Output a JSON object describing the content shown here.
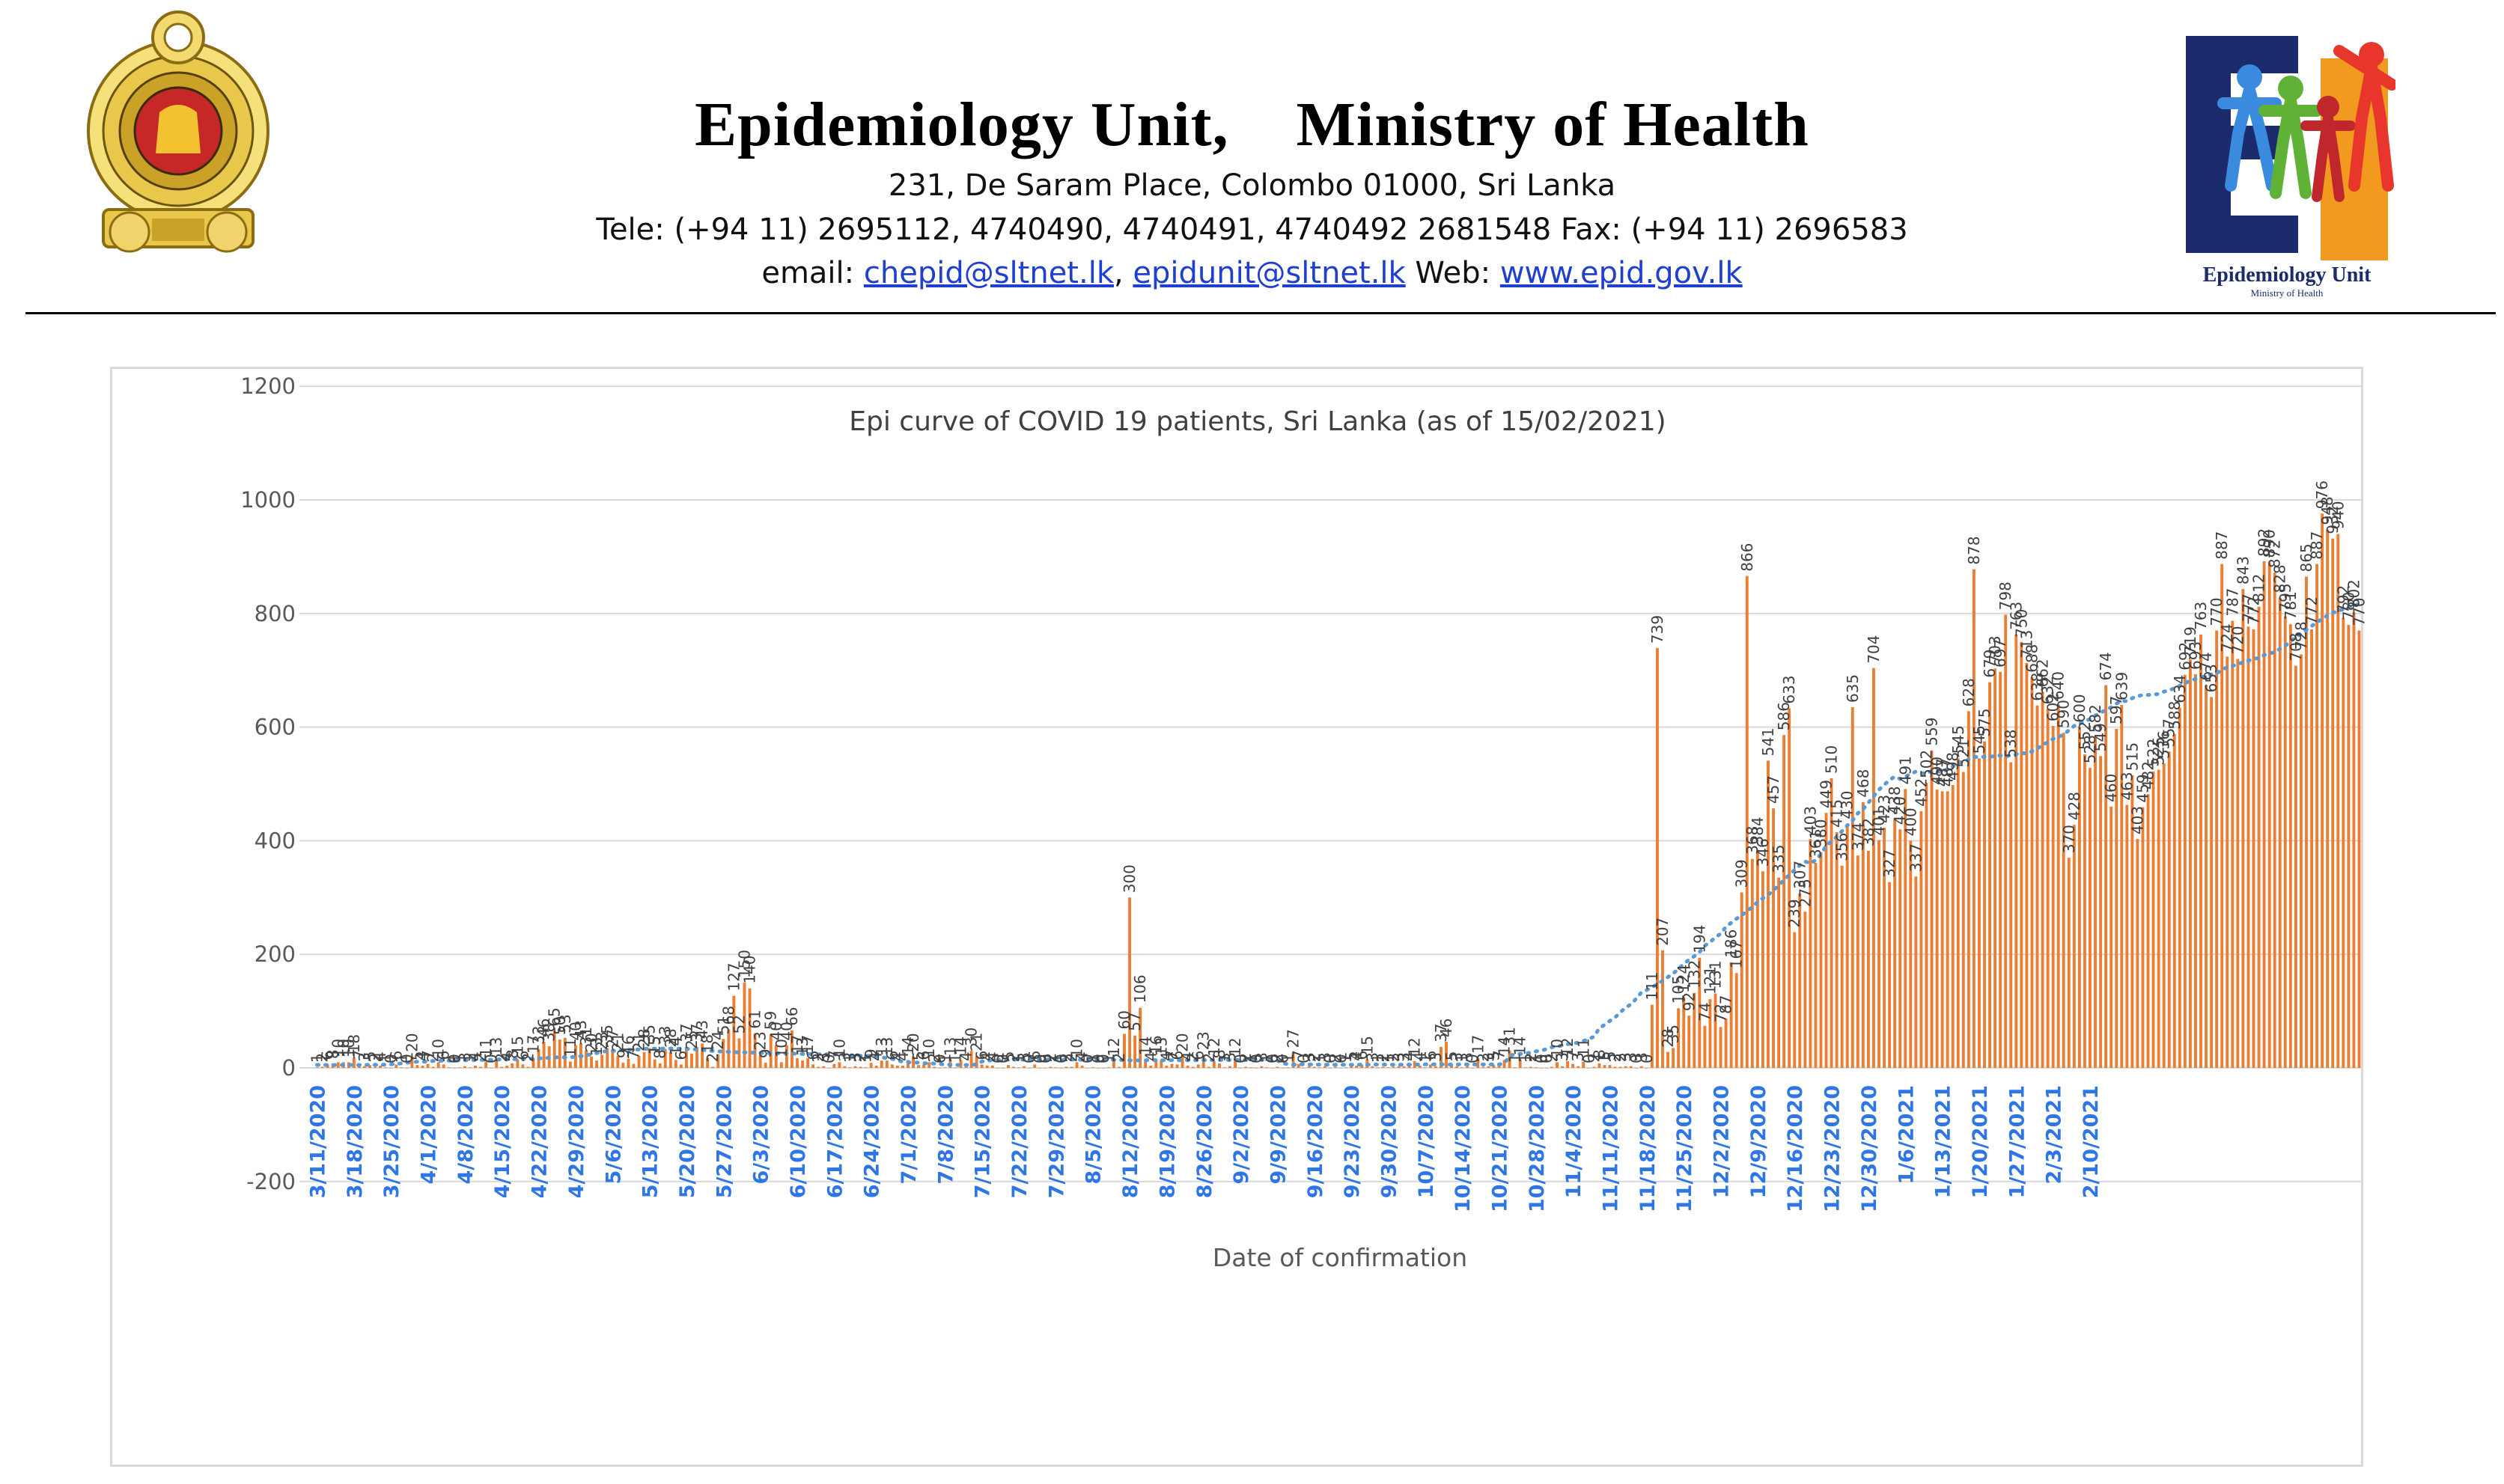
{
  "header": {
    "title_left": "Epidemiology Unit,",
    "title_right": "Ministry of Health",
    "address": "231, De Saram Place, Colombo 01000, Sri Lanka",
    "tele": "Tele: (+94 11) 2695112, 4740490, 4740491, 4740492 2681548  Fax: (+94 11) 2696583",
    "email_label": "email: ",
    "email1": "chepid@sltnet.lk",
    "email_sep": ", ",
    "email2": "epidunit@sltnet.lk",
    "web_label": " Web: ",
    "web": "www.epid.gov.lk",
    "logo_text": "Epidemiology Unit",
    "logo_subtext": "Ministry of Health"
  },
  "colors": {
    "bar": "#ed7d31",
    "trend": "#5b9bd5",
    "xlabel": "#2e75e6",
    "axis_text": "#595959",
    "link": "#1f3fd0"
  },
  "chart_data": {
    "type": "bar",
    "title": "Epi curve of COVID 19 patients, Sri Lanka  (as of 15/02/2021)",
    "xlabel": "Date of confirmation",
    "ylabel": "",
    "ylim": [
      -200,
      1200
    ],
    "yticks": [
      -200,
      0,
      200,
      400,
      600,
      800,
      1000,
      1200
    ],
    "start_date": "3/11/2020",
    "end_date": "2/15/2021",
    "x_tick_labels": [
      "3/11/2020",
      "3/18/2020",
      "3/25/2020",
      "4/1/2020",
      "4/8/2020",
      "4/15/2020",
      "4/22/2020",
      "4/29/2020",
      "5/6/2020",
      "5/13/2020",
      "5/20/2020",
      "5/27/2020",
      "6/3/2020",
      "6/10/2020",
      "6/17/2020",
      "6/24/2020",
      "7/1/2020",
      "7/8/2020",
      "7/15/2020",
      "7/22/2020",
      "7/29/2020",
      "8/5/2020",
      "8/12/2020",
      "8/19/2020",
      "8/26/2020",
      "9/2/2020",
      "9/9/2020",
      "9/16/2020",
      "9/23/2020",
      "9/30/2020",
      "10/7/2020",
      "10/14/2020",
      "10/21/2020",
      "10/28/2020",
      "11/4/2020",
      "11/11/2020",
      "11/18/2020",
      "11/25/2020",
      "12/2/2020",
      "12/9/2020",
      "12/16/2020",
      "12/23/2020",
      "12/30/2020",
      "1/6/2021",
      "1/13/2021",
      "1/20/2021",
      "1/27/2021",
      "2/3/2021",
      "2/10/2021"
    ],
    "values": [
      1,
      2,
      6,
      8,
      10,
      10,
      10,
      18,
      7,
      3,
      5,
      2,
      4,
      1,
      0,
      6,
      1,
      0,
      20,
      5,
      4,
      7,
      2,
      10,
      6,
      1,
      0,
      1,
      3,
      1,
      4,
      2,
      11,
      0,
      13,
      2,
      4,
      8,
      15,
      6,
      2,
      17,
      33,
      46,
      38,
      65,
      50,
      53,
      11,
      40,
      43,
      31,
      20,
      13,
      23,
      35,
      27,
      21,
      9,
      16,
      7,
      21,
      28,
      35,
      15,
      8,
      33,
      28,
      14,
      6,
      37,
      25,
      37,
      43,
      18,
      2,
      24,
      51,
      68,
      127,
      52,
      150,
      140,
      61,
      23,
      9,
      59,
      40,
      10,
      40,
      66,
      17,
      13,
      17,
      6,
      2,
      3,
      0,
      7,
      10,
      3,
      1,
      3,
      2,
      1,
      9,
      4,
      13,
      13,
      6,
      4,
      4,
      14,
      20,
      5,
      6,
      10,
      2,
      0,
      1,
      13,
      1,
      14,
      4,
      30,
      21,
      6,
      4,
      4,
      0,
      0,
      5,
      2,
      1,
      3,
      0,
      6,
      0,
      0,
      2,
      1,
      0,
      2,
      2,
      10,
      4,
      0,
      1,
      0,
      0,
      1,
      12,
      2,
      60,
      300,
      57,
      106,
      14,
      4,
      16,
      13,
      4,
      7,
      6,
      20,
      4,
      2,
      6,
      23,
      2,
      12,
      8,
      1,
      3,
      12,
      0,
      2,
      1,
      0,
      3,
      1,
      0,
      2,
      0,
      1,
      27,
      7,
      0,
      3,
      2,
      1,
      3,
      0,
      2,
      0,
      1,
      5,
      4,
      6,
      15,
      3,
      1,
      2,
      1,
      2,
      3,
      3,
      4,
      12,
      4,
      1,
      6,
      3,
      37,
      46,
      5,
      3,
      1,
      3,
      0,
      17,
      2,
      3,
      5,
      7,
      14,
      31,
      1,
      14,
      1,
      2,
      1,
      0,
      0,
      2,
      10,
      3,
      12,
      7,
      3,
      11,
      0,
      2,
      8,
      5,
      5,
      2,
      2,
      3,
      3,
      0,
      3,
      0,
      111,
      739,
      207,
      28,
      35,
      105,
      124,
      92,
      132,
      194,
      74,
      121,
      131,
      72,
      87,
      186,
      167,
      309,
      866,
      368,
      384,
      346,
      541,
      457,
      335,
      586,
      633,
      239,
      307,
      275,
      403,
      361,
      380,
      449,
      510,
      415,
      356,
      430,
      635,
      374,
      468,
      382,
      704,
      401,
      423,
      327,
      438,
      420,
      491,
      400,
      337,
      452,
      502,
      559,
      490,
      487,
      487,
      498,
      545,
      521,
      628,
      878,
      545,
      575,
      679,
      703,
      697,
      798,
      538,
      763,
      750,
      713,
      688,
      638,
      662,
      632,
      602,
      640,
      590,
      370,
      428,
      600,
      552,
      528,
      582,
      549,
      674,
      460,
      597,
      639,
      463,
      515,
      403,
      459,
      482,
      522,
      525,
      536,
      557,
      588,
      634,
      692,
      719,
      693,
      763,
      674,
      653,
      770,
      887,
      724,
      787,
      720,
      843,
      777,
      772,
      812,
      892,
      890,
      872,
      828,
      795,
      781,
      708,
      728,
      865,
      772,
      887,
      976,
      948,
      932,
      940,
      792,
      780,
      802,
      770
    ],
    "trend": "6th-order polynomial (dotted)"
  }
}
